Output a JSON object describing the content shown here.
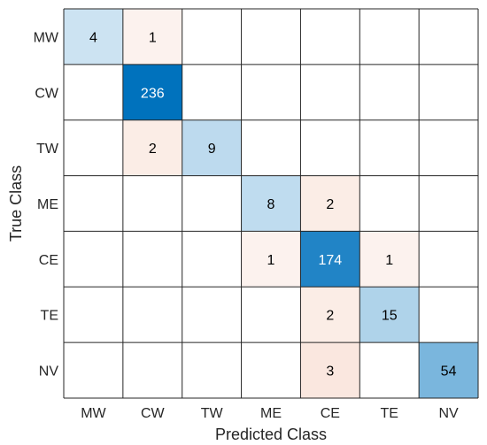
{
  "chart_data": {
    "type": "heatmap",
    "title": "",
    "xlabel": "Predicted Class",
    "ylabel": "True Class",
    "x_categories": [
      "MW",
      "CW",
      "TW",
      "ME",
      "CE",
      "TE",
      "NV"
    ],
    "y_categories": [
      "MW",
      "CW",
      "TW",
      "ME",
      "CE",
      "TE",
      "NV"
    ],
    "values": [
      [
        4,
        1,
        0,
        0,
        0,
        0,
        0
      ],
      [
        0,
        236,
        0,
        0,
        0,
        0,
        0
      ],
      [
        0,
        2,
        9,
        0,
        0,
        0,
        0
      ],
      [
        0,
        0,
        0,
        8,
        2,
        0,
        0
      ],
      [
        0,
        0,
        0,
        1,
        174,
        1,
        0
      ],
      [
        0,
        0,
        0,
        0,
        2,
        15,
        0
      ],
      [
        0,
        0,
        0,
        0,
        3,
        0,
        54
      ]
    ],
    "zero_cells_shown": false,
    "colors": {
      "correct_high": "#0072bd",
      "correct_low": "#ffffff",
      "incorrect_high": "#d95319",
      "incorrect_low": "#ffffff",
      "grid": "#262626",
      "text_dark": "#000000",
      "text_light": "#ffffff"
    }
  }
}
